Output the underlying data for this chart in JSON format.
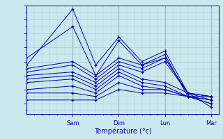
{
  "xlabel": "Température (°c)",
  "xtick_labels": [
    "Sam",
    "Dim",
    "Lun",
    "Mar"
  ],
  "xtick_positions": [
    24,
    48,
    72,
    96
  ],
  "xlim": [
    0,
    100
  ],
  "ylim": [
    8.5,
    24
  ],
  "yticks": [
    9,
    11,
    13,
    15,
    17,
    19,
    21,
    23
  ],
  "bg_color": "#cce8ee",
  "grid_color": "#aaccd4",
  "line_color": "#0000aa",
  "marker": "P",
  "series": [
    [
      15.5,
      23.5,
      15.5,
      19.5,
      16.0,
      17.5,
      11.5,
      9.5
    ],
    [
      16.5,
      21.0,
      14.0,
      19.0,
      15.5,
      17.0,
      11.0,
      11.0
    ],
    [
      15.0,
      16.0,
      14.0,
      16.5,
      15.5,
      16.5,
      11.5,
      11.0
    ],
    [
      14.5,
      15.5,
      13.5,
      16.0,
      15.0,
      16.5,
      11.5,
      11.0
    ],
    [
      14.0,
      14.5,
      13.0,
      15.5,
      14.5,
      16.0,
      11.5,
      11.0
    ],
    [
      13.5,
      14.0,
      12.5,
      15.0,
      13.5,
      13.0,
      11.5,
      10.5
    ],
    [
      13.0,
      13.5,
      12.0,
      14.5,
      13.0,
      12.5,
      11.0,
      10.5
    ],
    [
      12.0,
      12.5,
      11.5,
      14.0,
      12.5,
      12.0,
      11.0,
      10.5
    ],
    [
      11.5,
      11.5,
      11.0,
      13.0,
      12.0,
      12.0,
      11.0,
      10.0
    ],
    [
      10.5,
      10.5,
      10.5,
      12.0,
      11.5,
      11.5,
      11.0,
      10.0
    ]
  ],
  "x_positions": [
    0,
    24,
    36,
    48,
    60,
    72,
    84,
    96
  ],
  "vline_positions": [
    24,
    48,
    72,
    96
  ],
  "vline_color": "#6688aa",
  "font_size_tick": 6,
  "font_size_label": 7
}
